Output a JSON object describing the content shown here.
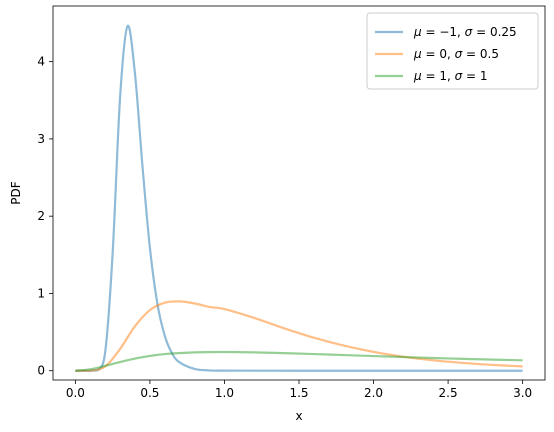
{
  "chart_data": {
    "type": "line",
    "xlabel": "x",
    "ylabel": "PDF",
    "xlim": [
      -0.15,
      3.15
    ],
    "ylim": [
      -0.12,
      4.72
    ],
    "xticks": [
      0.0,
      0.5,
      1.0,
      1.5,
      2.0,
      2.5,
      3.0
    ],
    "xtick_labels": [
      "0.0",
      "0.5",
      "1.0",
      "1.5",
      "2.0",
      "2.5",
      "3.0"
    ],
    "yticks": [
      0,
      1,
      2,
      3,
      4
    ],
    "ytick_labels": [
      "0",
      "1",
      "2",
      "3",
      "4"
    ],
    "grid": false,
    "legend_position": "top-right",
    "line_alpha": 0.5,
    "series": [
      {
        "name": "μ = −1, σ = 0.25",
        "legend_parts": [
          "μ",
          " = −1, ",
          "σ",
          " = 0.25"
        ],
        "color": "#1f77b4",
        "x": [
          0.0,
          0.1,
          0.15,
          0.2,
          0.25,
          0.3,
          0.35,
          0.4,
          0.45,
          0.5,
          0.55,
          0.6,
          0.65,
          0.7,
          0.8,
          0.9,
          1.0,
          1.5,
          2.0,
          2.5,
          3.0
        ],
        "y": [
          0.0,
          0.0,
          0.007,
          0.24,
          1.52,
          3.54,
          4.46,
          3.84,
          2.65,
          1.59,
          0.87,
          0.45,
          0.22,
          0.107,
          0.023,
          0.004,
          0.001,
          0.0,
          0.0,
          0.0,
          0.0
        ]
      },
      {
        "name": "μ = 0, σ = 0.5",
        "legend_parts": [
          "μ",
          " = 0, ",
          "σ",
          " = 0.5"
        ],
        "color": "#ff7f0e",
        "x": [
          0.0,
          0.1,
          0.2,
          0.3,
          0.4,
          0.5,
          0.6,
          0.7,
          0.8,
          0.9,
          1.0,
          1.2,
          1.4,
          1.6,
          1.8,
          2.0,
          2.2,
          2.4,
          2.6,
          2.8,
          3.0
        ],
        "y": [
          0.0,
          0.0,
          0.054,
          0.282,
          0.576,
          0.785,
          0.881,
          0.897,
          0.87,
          0.825,
          0.798,
          0.683,
          0.549,
          0.427,
          0.325,
          0.244,
          0.182,
          0.135,
          0.101,
          0.075,
          0.056
        ]
      },
      {
        "name": "μ = 1, σ = 1",
        "legend_parts": [
          "μ",
          " = 1, ",
          "σ",
          " = 1"
        ],
        "color": "#2ca02c",
        "x": [
          0.0,
          0.1,
          0.2,
          0.3,
          0.4,
          0.5,
          0.6,
          0.8,
          1.0,
          1.2,
          1.4,
          1.6,
          1.8,
          2.0,
          2.2,
          2.5,
          2.8,
          3.0
        ],
        "y": [
          0.0,
          0.018,
          0.063,
          0.112,
          0.157,
          0.191,
          0.216,
          0.237,
          0.242,
          0.237,
          0.228,
          0.216,
          0.203,
          0.19,
          0.177,
          0.159,
          0.144,
          0.135
        ]
      }
    ]
  }
}
